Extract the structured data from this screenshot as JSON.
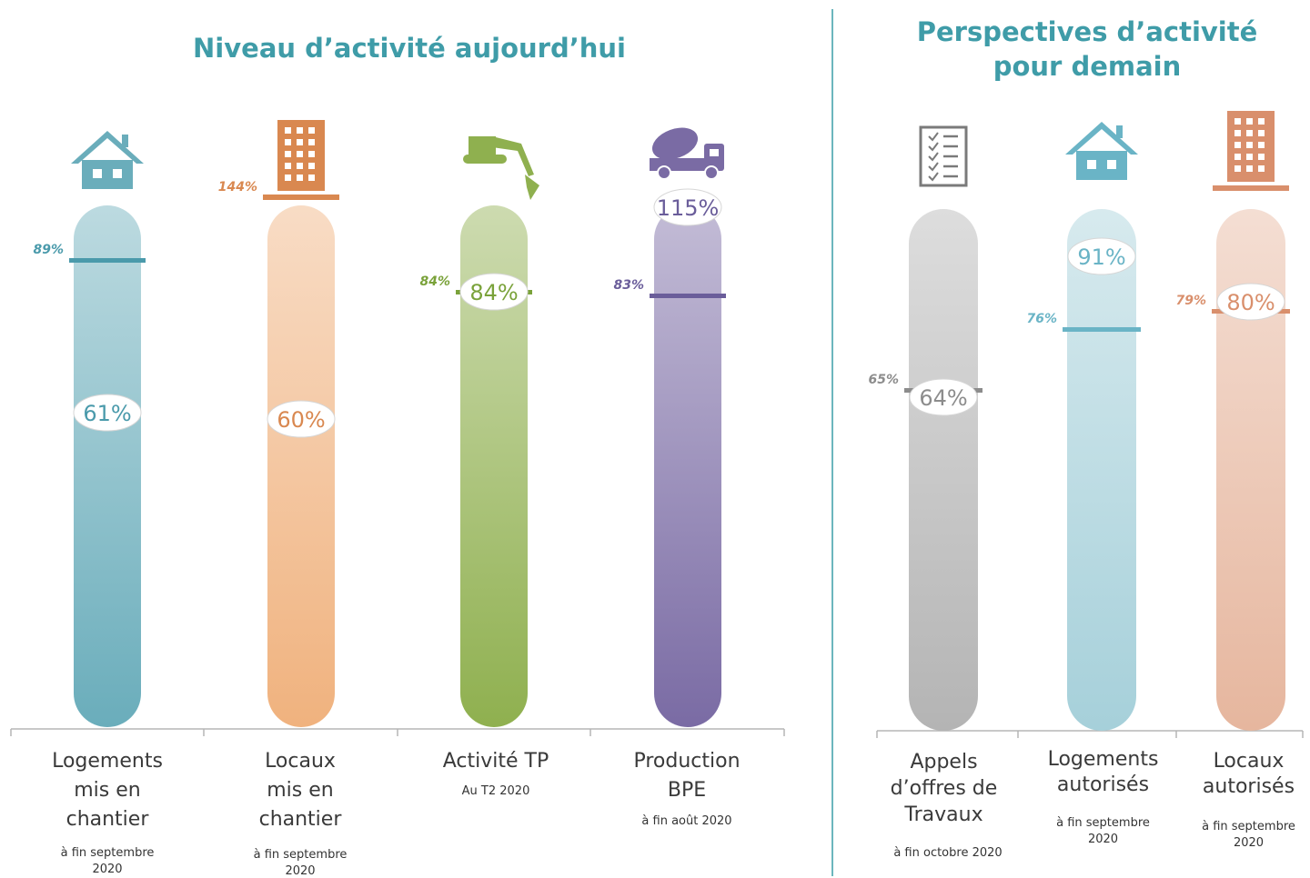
{
  "titles": {
    "left": "Niveau d’activité aujourd’hui",
    "right": "Perspectives d’activité pour demain"
  },
  "colors": {
    "title": "#3f9ca8",
    "teal": "#6aadbb",
    "orange": "#f0b27e",
    "green": "#8fb04f",
    "purple": "#7a6ba4",
    "gray": "#b4b4b4",
    "lightblue": "#a6d0da",
    "salmon": "#e6b69e"
  },
  "chart_data": [
    {
      "type": "bar",
      "panel": "Niveau d’activité aujourd’hui",
      "categories": [
        {
          "label": "Logements mis en chantier",
          "sub": "à fin septembre 2020",
          "icon": "house-icon"
        },
        {
          "label": "Locaux mis en chantier",
          "sub": "à fin septembre 2020",
          "icon": "building-icon"
        },
        {
          "label": "Activité TP",
          "sub": "Au T2 2020",
          "icon": "excavator-icon"
        },
        {
          "label": "Production BPE",
          "sub": "à fin août 2020",
          "icon": "concrete-truck-icon"
        }
      ],
      "current": [
        "61%",
        "60%",
        "84%",
        "115%"
      ],
      "current_values": [
        61,
        60,
        84,
        115
      ],
      "reference": [
        "89%",
        "144%",
        "84%",
        "83%"
      ],
      "reference_values": [
        89,
        144,
        84,
        83
      ],
      "colors": [
        "#6aadbb",
        "#f0b27e",
        "#8fb04f",
        "#7a6ba4"
      ],
      "label_colors": [
        "#4a9aab",
        "#d98850",
        "#7aa23a",
        "#6a5d9a"
      ]
    },
    {
      "type": "bar",
      "panel": "Perspectives d’activité pour demain",
      "categories": [
        {
          "label": "Appels d’offres de Travaux",
          "sub": "à fin octobre 2020",
          "icon": "checklist-icon"
        },
        {
          "label": "Logements autorisés",
          "sub": "à fin septembre 2020",
          "icon": "house-icon"
        },
        {
          "label": "Locaux autorisés",
          "sub": "à fin septembre 2020",
          "icon": "building-icon"
        }
      ],
      "current": [
        "64%",
        "91%",
        "80%"
      ],
      "current_values": [
        64,
        91,
        80
      ],
      "reference": [
        "65%",
        "76%",
        "79%"
      ],
      "reference_values": [
        65,
        76,
        79
      ],
      "colors": [
        "#b4b4b4",
        "#a6d0da",
        "#e6b69e"
      ],
      "label_colors": [
        "#8c8c8c",
        "#6ab4c6",
        "#d98f6c"
      ]
    }
  ]
}
